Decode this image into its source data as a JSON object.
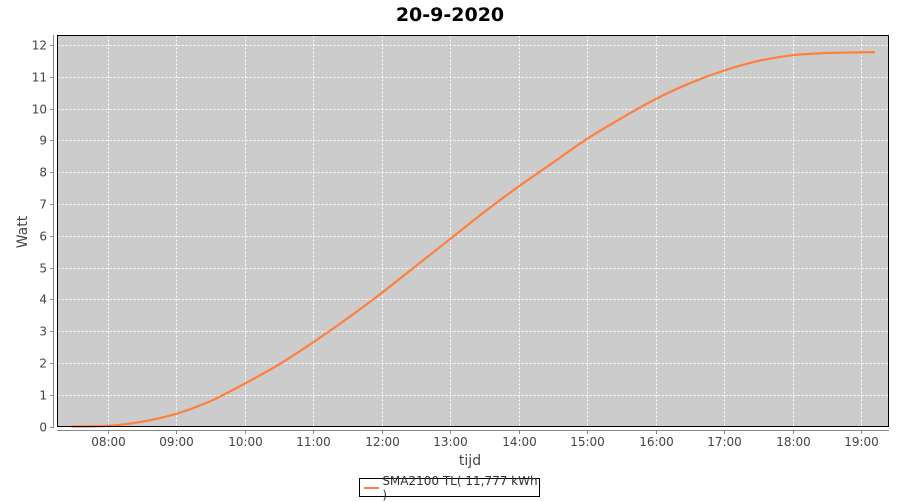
{
  "chart_data": {
    "type": "line",
    "title": "20-9-2020",
    "xlabel": "tijd",
    "ylabel": "Watt",
    "x_ticks": [
      "08:00",
      "09:00",
      "10:00",
      "11:00",
      "12:00",
      "13:00",
      "14:00",
      "15:00",
      "16:00",
      "17:00",
      "18:00",
      "19:00"
    ],
    "y_ticks": [
      "0",
      "1",
      "2",
      "3",
      "4",
      "5",
      "6",
      "7",
      "8",
      "9",
      "10",
      "11",
      "12"
    ],
    "xlim": [
      "07:16",
      "19:24"
    ],
    "ylim": [
      0,
      12.3
    ],
    "grid": true,
    "legend_position": "bottom",
    "plot_background": "#cccccc",
    "series": [
      {
        "name": "SMA2100 TL( 11,777 kWh )",
        "color": "#ff7f3f",
        "x": [
          "07:28",
          "08:00",
          "08:30",
          "09:00",
          "09:30",
          "10:00",
          "10:30",
          "11:00",
          "11:30",
          "12:00",
          "12:30",
          "13:00",
          "13:30",
          "14:00",
          "14:30",
          "15:00",
          "15:30",
          "16:00",
          "16:30",
          "17:00",
          "17:30",
          "18:00",
          "18:30",
          "19:00",
          "19:12"
        ],
        "y": [
          0.0,
          0.02,
          0.15,
          0.4,
          0.8,
          1.35,
          1.95,
          2.65,
          3.4,
          4.2,
          5.05,
          5.9,
          6.75,
          7.55,
          8.3,
          9.05,
          9.7,
          10.3,
          10.8,
          11.2,
          11.5,
          11.68,
          11.75,
          11.77,
          11.777
        ]
      }
    ]
  }
}
